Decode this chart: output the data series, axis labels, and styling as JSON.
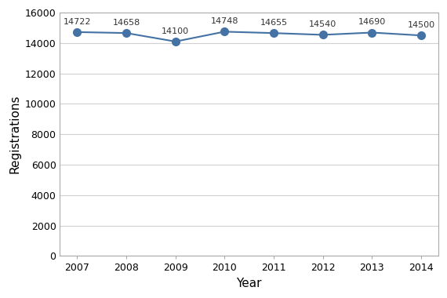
{
  "years": [
    2007,
    2008,
    2009,
    2010,
    2011,
    2012,
    2013,
    2014
  ],
  "values": [
    14722,
    14658,
    14100,
    14748,
    14655,
    14540,
    14690,
    14500
  ],
  "line_color": "#4472A4",
  "marker_color": "#4472A4",
  "xlabel": "Year",
  "ylabel": "Registrations",
  "ylim": [
    0,
    16000
  ],
  "yticks": [
    0,
    2000,
    4000,
    6000,
    8000,
    10000,
    12000,
    14000,
    16000
  ],
  "xticks": [
    2007,
    2008,
    2009,
    2010,
    2011,
    2012,
    2013,
    2014
  ],
  "grid_color": "#d0d0d0",
  "background_color": "#ffffff",
  "tick_label_fontsize": 9,
  "axis_label_fontsize": 11,
  "annotation_fontsize": 8,
  "marker_size": 7,
  "line_width": 1.5
}
